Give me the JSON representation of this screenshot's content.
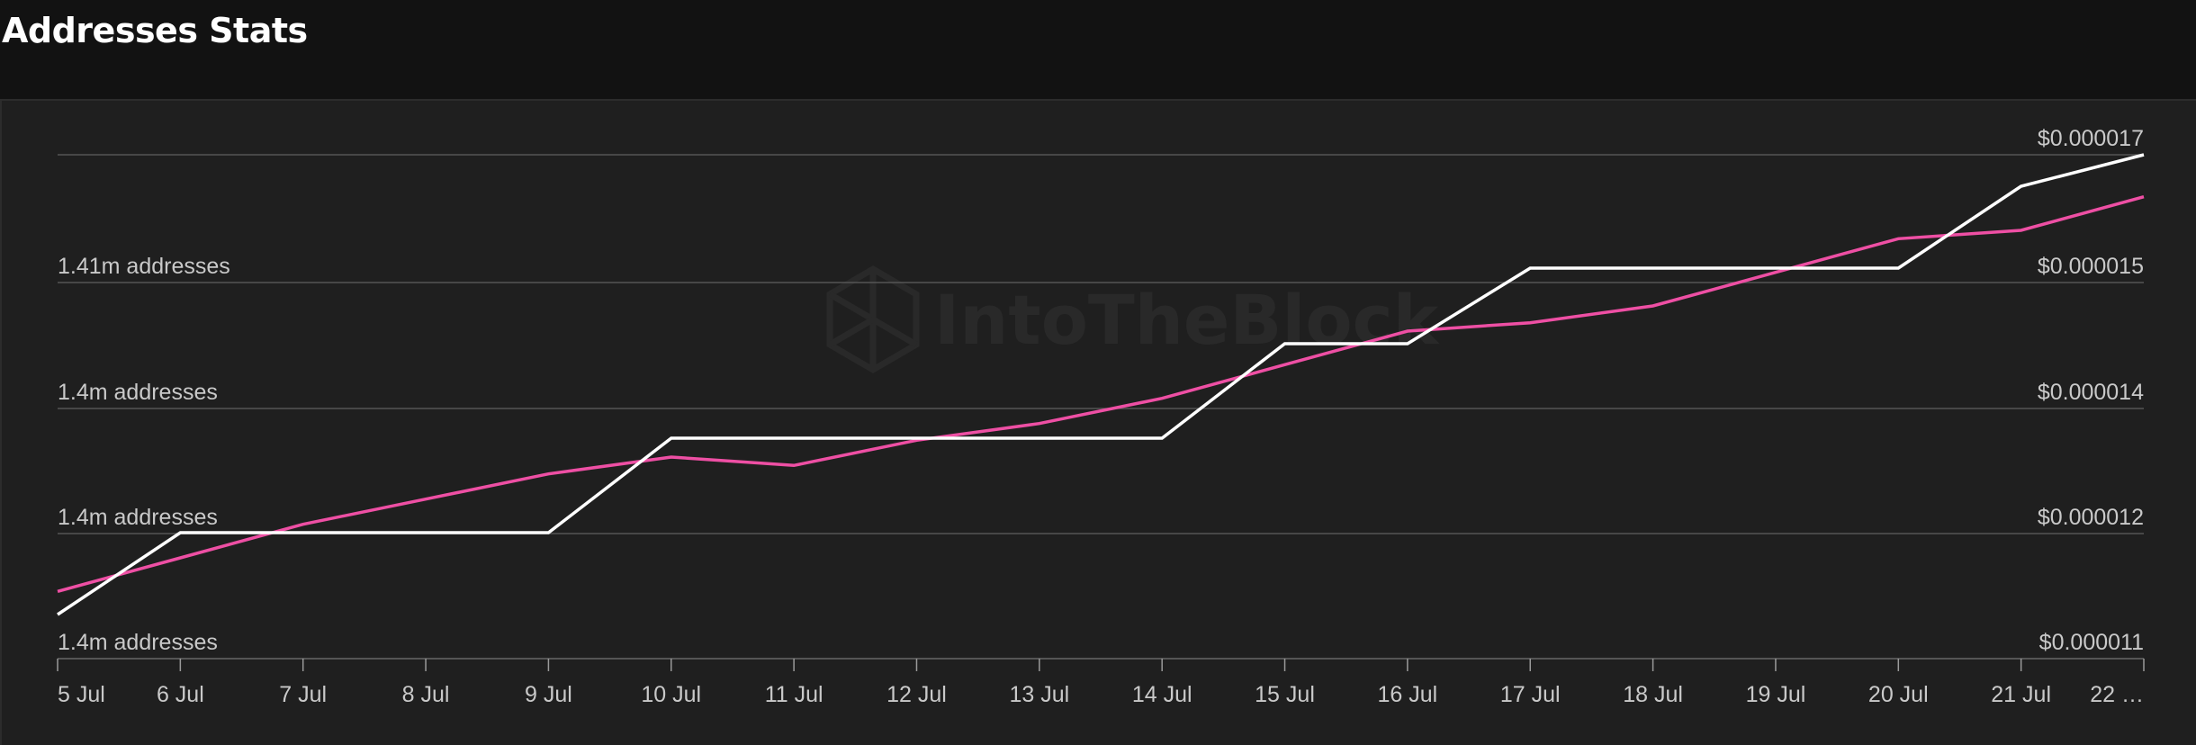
{
  "header": {
    "title": "Addresses Stats"
  },
  "watermark": {
    "text": "IntoTheBlock"
  },
  "colors": {
    "background": "#1f1f1f",
    "grid": "#555555",
    "addresses_line": "#ffffff",
    "price_line": "#ee4fa4",
    "axis_text": "#c9c9c9"
  },
  "chart_data": {
    "type": "line",
    "x": [
      "5 Jul",
      "6 Jul",
      "7 Jul",
      "8 Jul",
      "9 Jul",
      "10 Jul",
      "11 Jul",
      "12 Jul",
      "13 Jul",
      "14 Jul",
      "15 Jul",
      "16 Jul",
      "17 Jul",
      "18 Jul",
      "19 Jul",
      "20 Jul",
      "21 Jul",
      "22 …"
    ],
    "left_axis": {
      "tick_labels": [
        "1.4m addresses",
        "1.4m addresses",
        "1.4m addresses",
        "1.41m addresses"
      ],
      "tick_index": [
        0,
        1,
        2,
        3
      ]
    },
    "right_axis": {
      "tick_labels": [
        "$0.000011",
        "$0.000012",
        "$0.000014",
        "$0.000015",
        "$0.000017"
      ],
      "ticks": [
        1.1e-05,
        1.2e-05,
        1.4e-05,
        1.5e-05,
        1.7e-05
      ]
    },
    "series": [
      {
        "axis": "left",
        "color": "#ffffff",
        "values": [
          1399050,
          1399700,
          1399700,
          1399700,
          1399700,
          1400450,
          1400450,
          1400450,
          1400450,
          1400450,
          1401200,
          1401200,
          1401800,
          1401800,
          1401800,
          1401800,
          1402450,
          1402700
        ]
      },
      {
        "axis": "right",
        "color": "#ee4fa4",
        "values": [
          1.18e-05,
          1.22e-05,
          1.26e-05,
          1.29e-05,
          1.32e-05,
          1.34e-05,
          1.33e-05,
          1.36e-05,
          1.38e-05,
          1.41e-05,
          1.45e-05,
          1.49e-05,
          1.5e-05,
          1.52e-05,
          1.56e-05,
          1.6e-05,
          1.61e-05,
          1.65e-05
        ]
      }
    ],
    "left_range": [
      1398700,
      1402700
    ],
    "right_range": [
      1.1e-05,
      1.7e-05
    ],
    "grid": true,
    "legend": "none"
  }
}
